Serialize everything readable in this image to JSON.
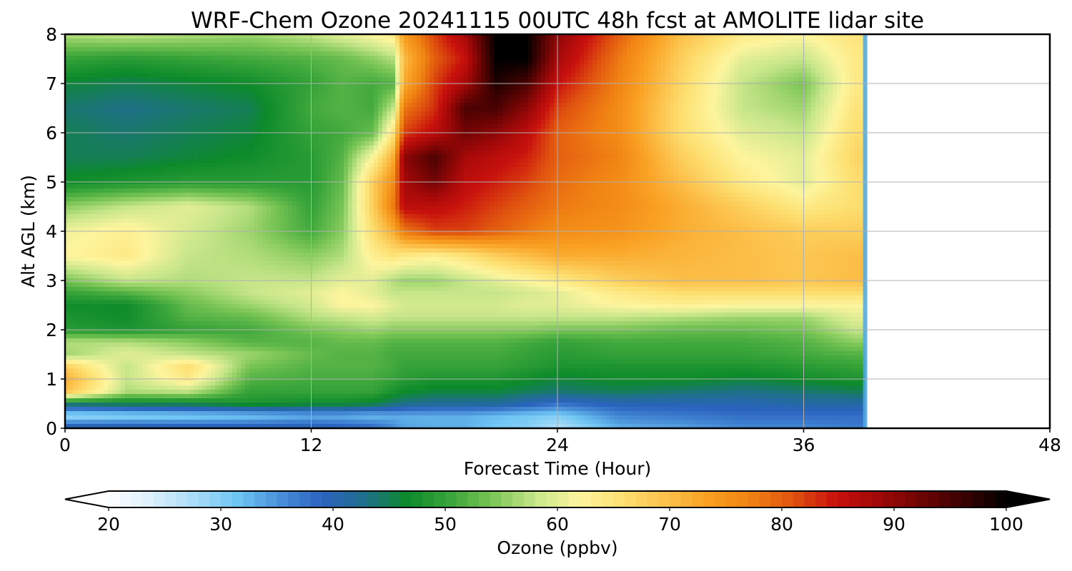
{
  "chart_data": {
    "type": "heatmap",
    "title": "WRF-Chem Ozone  20241115 00UTC 48h fcst at AMOLITE lidar site",
    "xlabel": "Forecast Time (Hour)",
    "ylabel": "Alt AGL (km)",
    "xlim": [
      0,
      48
    ],
    "ylim": [
      0,
      8
    ],
    "x_ticks": [
      "0",
      "12",
      "24",
      "36",
      "48"
    ],
    "y_ticks": [
      "0",
      "1",
      "2",
      "3",
      "4",
      "5",
      "6",
      "7",
      "8"
    ],
    "grid": true,
    "data_end_hour": 39,
    "colorbar": {
      "label": "Ozone  (ppbv)",
      "range": [
        20,
        100
      ],
      "ticks": [
        "20",
        "30",
        "40",
        "50",
        "60",
        "70",
        "80",
        "90",
        "100"
      ],
      "extend": "both",
      "orientation": "horizontal",
      "colors": [
        "#ffffff",
        "#dcf0fc",
        "#aadcf8",
        "#6ec6f4",
        "#4a90d9",
        "#2a63bf",
        "#1f6f8b",
        "#0c8a2a",
        "#3aa53a",
        "#7cc656",
        "#c8e68a",
        "#fdf59e",
        "#fde072",
        "#fcc24c",
        "#f9a123",
        "#f08313",
        "#e0530f",
        "#c8110d",
        "#a00808",
        "#6e0404",
        "#3a0101",
        "#000000"
      ]
    },
    "x_hours": [
      0,
      3,
      6,
      9,
      12,
      13.5,
      15,
      16,
      16.5,
      18,
      19.5,
      21,
      22.5,
      24,
      27,
      30,
      33,
      36,
      38.5
    ],
    "y_km": [
      0,
      0.25,
      0.5,
      0.75,
      1.0,
      1.25,
      1.5,
      1.75,
      2.0,
      2.25,
      2.5,
      2.75,
      3.0,
      3.5,
      4.0,
      4.5,
      5.0,
      5.5,
      6.0,
      6.5,
      7.0,
      7.5,
      8.0
    ],
    "ozone_ppbv": [
      [
        42,
        28,
        45,
        70,
        72,
        68,
        56,
        57,
        49,
        48,
        47,
        50,
        54,
        62,
        61,
        55,
        47,
        45,
        45,
        44,
        46,
        50,
        57
      ],
      [
        42,
        29,
        46,
        57,
        58,
        58,
        60,
        57,
        48,
        47,
        47,
        52,
        58,
        64,
        63,
        58,
        48,
        45,
        44,
        43,
        45,
        49,
        58
      ],
      [
        41,
        30,
        46,
        58,
        64,
        66,
        58,
        55,
        50,
        52,
        53,
        55,
        57,
        58,
        59,
        60,
        49,
        46,
        45,
        44,
        46,
        50,
        57
      ],
      [
        41,
        31,
        48,
        50,
        52,
        54,
        56,
        52,
        51,
        53,
        56,
        58,
        58,
        57,
        56,
        57,
        49,
        47,
        46,
        45,
        47,
        51,
        56
      ],
      [
        41,
        33,
        47,
        50,
        51,
        52,
        53,
        52,
        54,
        57,
        59,
        60,
        58,
        55,
        51,
        50,
        49,
        49,
        50,
        51,
        50,
        52,
        58
      ],
      [
        40,
        33,
        47,
        50,
        51,
        52,
        52,
        53,
        55,
        58,
        62,
        62,
        60,
        57,
        55,
        54,
        53,
        52,
        51,
        52,
        52,
        53,
        60
      ],
      [
        39,
        32,
        46,
        50,
        51,
        52,
        52,
        53,
        56,
        59,
        62,
        60,
        60,
        63,
        66,
        68,
        68,
        62,
        53,
        51,
        51,
        55,
        62
      ],
      [
        36,
        33,
        44,
        48,
        50,
        51,
        51,
        52,
        55,
        58,
        60,
        58,
        57,
        65,
        72,
        78,
        76,
        72,
        65,
        58,
        52,
        57,
        64
      ],
      [
        34,
        33,
        43,
        47,
        49,
        50,
        51,
        52,
        55,
        58,
        59,
        58,
        56,
        64,
        78,
        86,
        88,
        90,
        82,
        78,
        72,
        70,
        74
      ],
      [
        33,
        33,
        42,
        46,
        48,
        50,
        51,
        52,
        55,
        58,
        59,
        58,
        56,
        63,
        82,
        86,
        92,
        95,
        86,
        83,
        82,
        80,
        82
      ],
      [
        33,
        33,
        42,
        46,
        48,
        50,
        51,
        52,
        55,
        58,
        59,
        58,
        58,
        65,
        82,
        84,
        86,
        88,
        92,
        95,
        88,
        85,
        88
      ],
      [
        31,
        32,
        42,
        46,
        48,
        50,
        51,
        52,
        55,
        58,
        59,
        58,
        60,
        68,
        80,
        82,
        84,
        86,
        90,
        95,
        98,
        100,
        100
      ],
      [
        30,
        31,
        40,
        45,
        47,
        49,
        50,
        51,
        55,
        58,
        60,
        59,
        62,
        70,
        78,
        80,
        82,
        84,
        86,
        90,
        95,
        100,
        100
      ],
      [
        27,
        30,
        38,
        44,
        46,
        48,
        49,
        50,
        54,
        58,
        60,
        60,
        64,
        72,
        76,
        78,
        79,
        80,
        80,
        82,
        85,
        88,
        90
      ],
      [
        33,
        36,
        40,
        45,
        47,
        48,
        50,
        51,
        54,
        58,
        62,
        64,
        68,
        72,
        75,
        76,
        76,
        77,
        76,
        76,
        77,
        78,
        80
      ],
      [
        34,
        37,
        40,
        44,
        47,
        48,
        50,
        51,
        53,
        57,
        63,
        66,
        70,
        71,
        72,
        72,
        70,
        68,
        66,
        66,
        67,
        68,
        70
      ],
      [
        36,
        38,
        40,
        43,
        46,
        48,
        50,
        51,
        53,
        56,
        62,
        66,
        70,
        70,
        70,
        68,
        64,
        62,
        60,
        58,
        58,
        60,
        64
      ],
      [
        36,
        38,
        41,
        44,
        47,
        49,
        51,
        52,
        54,
        56,
        62,
        66,
        69,
        69,
        68,
        64,
        60,
        60,
        58,
        56,
        54,
        58,
        62
      ],
      [
        37,
        38,
        41,
        45,
        48,
        50,
        52,
        55,
        58,
        60,
        62,
        66,
        70,
        70,
        68,
        66,
        66,
        67,
        66,
        65,
        64,
        64,
        65
      ]
    ]
  }
}
